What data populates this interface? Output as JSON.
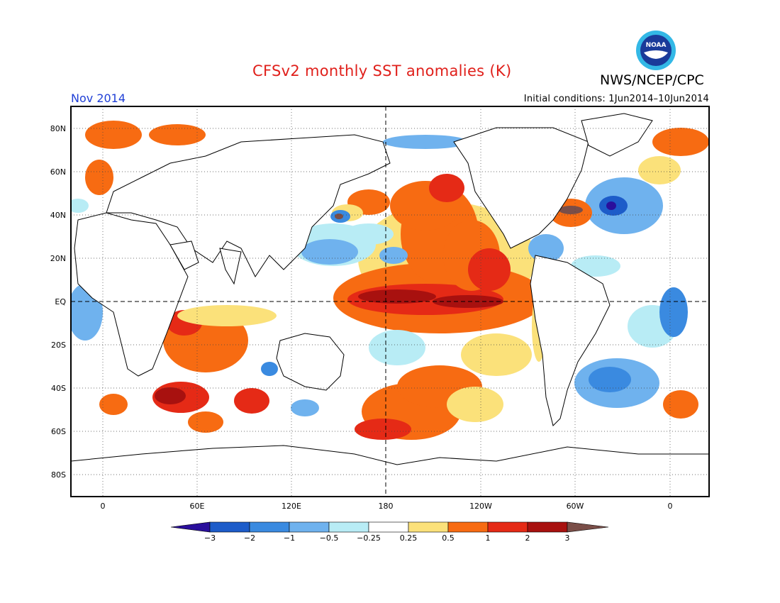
{
  "header": {
    "title": "CFSv2 monthly SST anomalies (K)",
    "agency": "NWS/NCEP/CPC",
    "month": "Nov 2014",
    "initial_conditions": "Initial conditions: 1Jun2014–10Jun2014",
    "logo_text": "NOAA"
  },
  "map": {
    "projection": "cylindrical equidistant",
    "lon_range": [
      -20,
      380
    ],
    "lat_range": [
      -90,
      90
    ],
    "lat_labels": [
      "80N",
      "60N",
      "40N",
      "20N",
      "EQ",
      "20S",
      "40S",
      "60S",
      "80S"
    ],
    "lon_labels": [
      "0",
      "60E",
      "120E",
      "180",
      "120W",
      "60W",
      "0"
    ]
  },
  "colorbar": {
    "tick_labels": [
      "−3",
      "−2",
      "−1",
      "−0.5",
      "−0.25",
      "0.25",
      "0.5",
      "1",
      "2",
      "3"
    ],
    "colors": [
      "#2a0f9c",
      "#1d5cc9",
      "#3a8ae0",
      "#6fb2ee",
      "#b8ecf5",
      "#ffffff",
      "#fbe17a",
      "#f76b12",
      "#e52a16",
      "#a8110f",
      "#7a4e48"
    ]
  },
  "colors": {
    "title": "#e0201b",
    "month": "#1f3fd6",
    "land": "#ffffff",
    "coast": "#000000"
  }
}
